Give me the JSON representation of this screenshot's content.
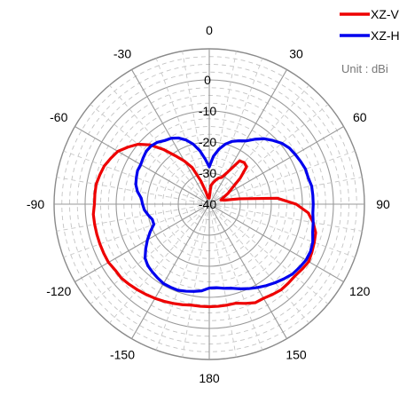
{
  "chart_data": {
    "type": "polar-line",
    "title": "",
    "unit_note": "Unit : dBi",
    "angle_labels": [
      "0",
      "30",
      "60",
      "90",
      "120",
      "150",
      "180",
      "-150",
      "-120",
      "-90",
      "-60",
      "-30"
    ],
    "angle_label_values": [
      0,
      30,
      60,
      90,
      120,
      150,
      180,
      -150,
      -120,
      -90,
      -60,
      -30
    ],
    "radial_range": [
      -40,
      10
    ],
    "radial_ticks": [
      -40,
      -30,
      -20,
      -10,
      0
    ],
    "radial_tick_labels": [
      "-40",
      "-30",
      "-20",
      "-10",
      "0"
    ],
    "angle_direction": "clockwise",
    "zero_at": "top",
    "grid": true,
    "legend_position": "top-right",
    "series": [
      {
        "name": "XZ-V",
        "color": "#ee0000",
        "angles": [
          0,
          5,
          10,
          15,
          20,
          25,
          30,
          35,
          40,
          45,
          50,
          55,
          60,
          65,
          70,
          75,
          80,
          85,
          90,
          95,
          100,
          105,
          110,
          115,
          120,
          125,
          130,
          135,
          140,
          145,
          150,
          155,
          160,
          165,
          170,
          175,
          180,
          185,
          190,
          195,
          200,
          205,
          210,
          215,
          220,
          225,
          230,
          235,
          240,
          245,
          250,
          255,
          260,
          265,
          270,
          275,
          280,
          285,
          290,
          295,
          300,
          305,
          310,
          315,
          320,
          325,
          330,
          335,
          340,
          345,
          350,
          355,
          360
        ],
        "values": [
          -38,
          -34,
          -33,
          -32,
          -31,
          -30.5,
          -28,
          -23,
          -22.5,
          -23,
          -27,
          -31,
          -33,
          -35,
          -36,
          -35,
          -30,
          -18,
          -12,
          -8,
          -6,
          -4.5,
          -4,
          -3.5,
          -3,
          -3.5,
          -4,
          -4,
          -4,
          -4.5,
          -5,
          -5,
          -6,
          -7,
          -7,
          -7,
          -7,
          -7,
          -7,
          -6.5,
          -6,
          -5.5,
          -5,
          -4.5,
          -4,
          -3.5,
          -3,
          -3,
          -2.5,
          -2.5,
          -2.5,
          -2.5,
          -2.5,
          -2.5,
          -3,
          -3,
          -3,
          -3.5,
          -4,
          -5,
          -6,
          -8,
          -10,
          -13,
          -17,
          -21,
          -24,
          -27,
          -32,
          -36,
          -38,
          -38,
          -38
        ]
      },
      {
        "name": "XZ-H",
        "color": "#0000ee",
        "angles": [
          0,
          5,
          10,
          15,
          20,
          25,
          30,
          35,
          40,
          45,
          50,
          55,
          60,
          65,
          70,
          75,
          80,
          85,
          90,
          95,
          100,
          105,
          110,
          115,
          120,
          125,
          130,
          135,
          140,
          145,
          150,
          155,
          160,
          165,
          170,
          175,
          180,
          185,
          190,
          195,
          200,
          205,
          210,
          215,
          220,
          225,
          230,
          235,
          240,
          245,
          250,
          255,
          260,
          265,
          270,
          275,
          280,
          285,
          290,
          295,
          300,
          305,
          310,
          315,
          320,
          325,
          330,
          335,
          340,
          345,
          350,
          355,
          360
        ],
        "values": [
          -28,
          -24.5,
          -22,
          -20,
          -18.5,
          -17.5,
          -16.5,
          -14.5,
          -12.5,
          -11,
          -9.5,
          -8.5,
          -8,
          -7.5,
          -7,
          -7,
          -6.5,
          -6.5,
          -6.5,
          -6.5,
          -6,
          -5.5,
          -4.5,
          -4,
          -4,
          -4.5,
          -5,
          -6,
          -7,
          -8,
          -9,
          -10,
          -11,
          -12,
          -12.5,
          -13,
          -13,
          -12,
          -11.5,
          -11,
          -10.5,
          -10.5,
          -10.5,
          -11,
          -11.5,
          -12,
          -13,
          -15,
          -17,
          -19,
          -21,
          -21,
          -20,
          -19,
          -18.5,
          -18,
          -16.5,
          -15.5,
          -15,
          -14.5,
          -14.5,
          -14,
          -13.5,
          -13.5,
          -14,
          -15,
          -15.5,
          -16.5,
          -18,
          -20,
          -22.5,
          -25.5,
          -28
        ]
      }
    ]
  }
}
